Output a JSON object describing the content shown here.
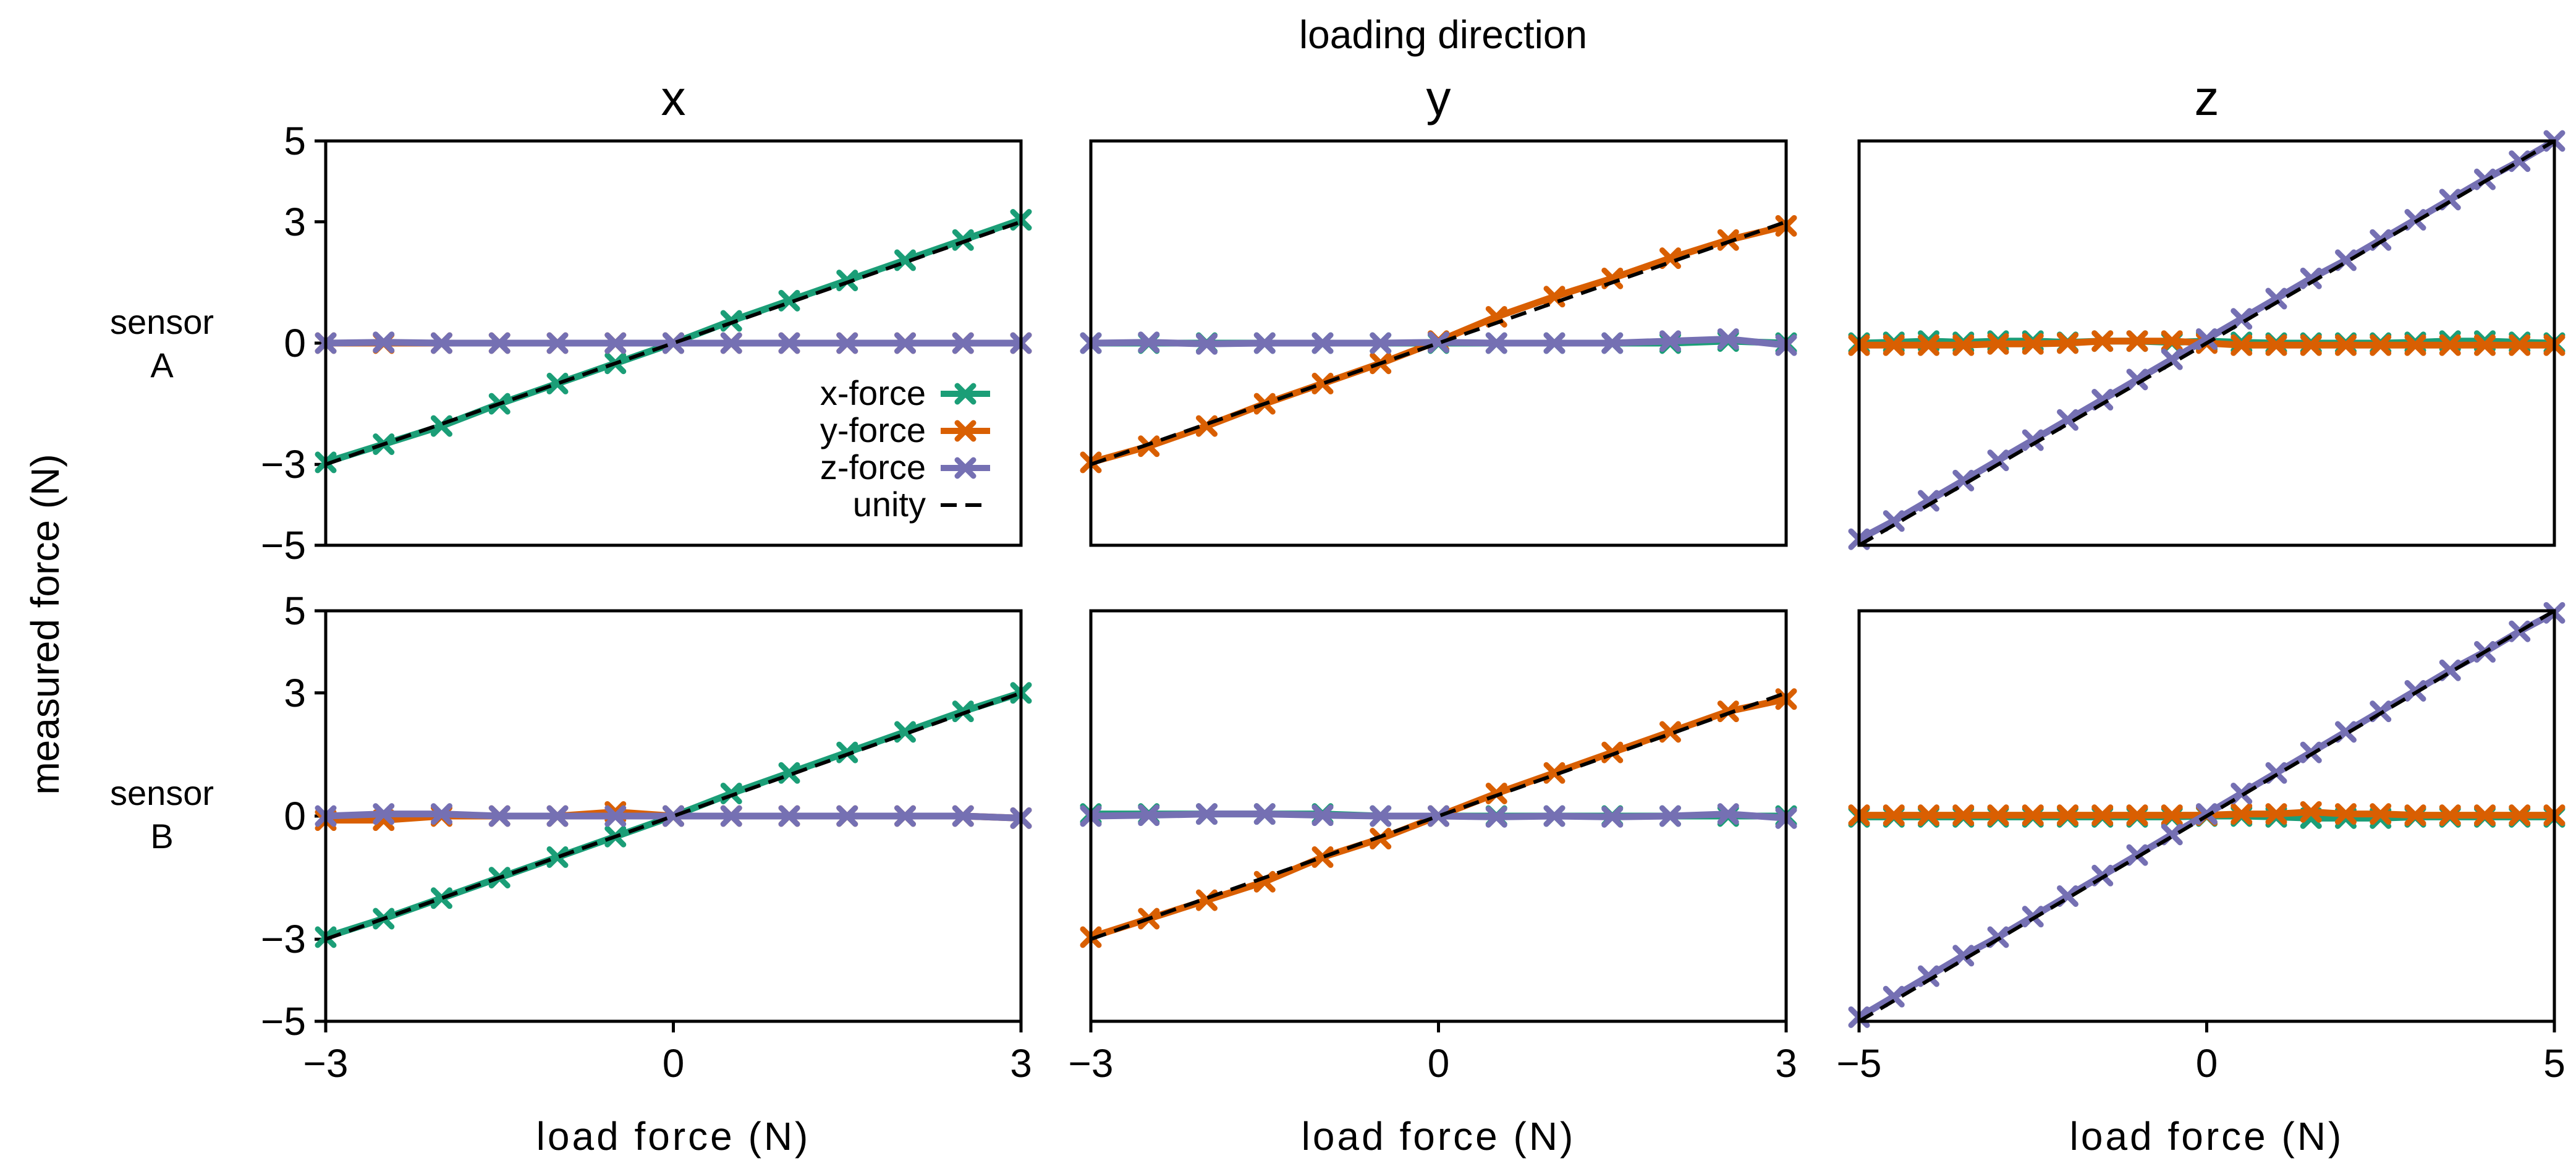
{
  "figure": {
    "super_title": "loading direction",
    "y_axis_label": "measured force (N)",
    "row_labels": [
      [
        "sensor",
        "A"
      ],
      [
        "sensor",
        "B"
      ]
    ],
    "x_axis_label": "load force (N)"
  },
  "colors": {
    "x-force": "#1b9e77",
    "y-force": "#d95f02",
    "z-force": "#7570b3",
    "unity": "#000000"
  },
  "legend": {
    "entries": [
      "x-force",
      "y-force",
      "z-force",
      "unity"
    ]
  },
  "chart_data": [
    {
      "type": "line",
      "panel": "sensor A - x",
      "title": "x",
      "xlabel": "",
      "ylabel": "",
      "xlim": [
        -3,
        3
      ],
      "ylim": [
        -5,
        5
      ],
      "xticks": [],
      "yticks": [
        -5,
        -3,
        0,
        3,
        5
      ],
      "x": [
        -3,
        -2.5,
        -2,
        -1.5,
        -1,
        -0.5,
        0,
        0.5,
        1,
        1.5,
        2,
        2.5,
        3
      ],
      "series": [
        {
          "name": "x-force",
          "values": [
            -2.95,
            -2.5,
            -2.05,
            -1.5,
            -1.0,
            -0.5,
            0,
            0.55,
            1.05,
            1.55,
            2.05,
            2.55,
            3.05
          ]
        },
        {
          "name": "y-force",
          "values": [
            0,
            0,
            0,
            0,
            0,
            0,
            0,
            0,
            0,
            0,
            0,
            0,
            0
          ]
        },
        {
          "name": "z-force",
          "values": [
            0,
            0.02,
            0,
            0,
            0,
            0,
            0,
            0,
            0,
            0,
            0,
            0,
            0
          ]
        },
        {
          "name": "unity",
          "values": [
            -3,
            -2.5,
            -2,
            -1.5,
            -1,
            -0.5,
            0,
            0.5,
            1,
            1.5,
            2,
            2.5,
            3
          ]
        }
      ],
      "legend": "lower-right"
    },
    {
      "type": "line",
      "panel": "sensor A - y",
      "title": "y",
      "xlim": [
        -3,
        3
      ],
      "ylim": [
        -5,
        5
      ],
      "xticks": [],
      "yticks": [],
      "x": [
        -3,
        -2.5,
        -2,
        -1.5,
        -1,
        -0.5,
        0,
        0.5,
        1,
        1.5,
        2,
        2.5,
        3
      ],
      "series": [
        {
          "name": "x-force",
          "values": [
            0,
            0,
            0,
            0,
            0,
            0,
            0,
            0,
            0,
            0,
            0,
            0.05,
            0.0
          ]
        },
        {
          "name": "y-force",
          "values": [
            -2.95,
            -2.55,
            -2.05,
            -1.5,
            -1.0,
            -0.5,
            0.05,
            0.65,
            1.15,
            1.6,
            2.1,
            2.55,
            2.9
          ]
        },
        {
          "name": "z-force",
          "values": [
            0,
            0.02,
            -0.02,
            0,
            0,
            0,
            0.02,
            0,
            0,
            0,
            0.05,
            0.1,
            -0.05
          ]
        },
        {
          "name": "unity",
          "values": [
            -3,
            -2.5,
            -2,
            -1.5,
            -1,
            -0.5,
            0,
            0.5,
            1,
            1.5,
            2,
            2.5,
            3
          ]
        }
      ]
    },
    {
      "type": "line",
      "panel": "sensor A - z",
      "title": "z",
      "xlim": [
        -5,
        5
      ],
      "ylim": [
        -5,
        5
      ],
      "xticks": [],
      "yticks": [],
      "x": [
        -5,
        -4.5,
        -4,
        -3.5,
        -3,
        -2.5,
        -2,
        -1.5,
        -1,
        -0.5,
        0,
        0.5,
        1,
        1.5,
        2,
        2.5,
        3,
        3.5,
        4,
        4.5,
        5
      ],
      "series": [
        {
          "name": "x-force",
          "values": [
            0,
            0.02,
            0.05,
            0.02,
            0.05,
            0.05,
            0.02,
            0.05,
            0.05,
            0.02,
            0.05,
            0.02,
            0,
            0,
            0,
            0,
            0.02,
            0.05,
            0.05,
            0.02,
            0
          ]
        },
        {
          "name": "y-force",
          "values": [
            -0.05,
            -0.05,
            -0.05,
            -0.05,
            -0.02,
            -0.02,
            0,
            0.05,
            0.05,
            0.05,
            0,
            -0.05,
            -0.05,
            -0.05,
            -0.05,
            -0.05,
            -0.05,
            -0.05,
            -0.05,
            -0.05,
            -0.05
          ]
        },
        {
          "name": "z-force",
          "values": [
            -4.85,
            -4.4,
            -3.9,
            -3.4,
            -2.9,
            -2.4,
            -1.9,
            -1.4,
            -0.9,
            -0.4,
            0.1,
            0.6,
            1.1,
            1.6,
            2.05,
            2.55,
            3.05,
            3.55,
            4.05,
            4.5,
            5
          ]
        },
        {
          "name": "unity",
          "values": [
            -5,
            -4.5,
            -4,
            -3.5,
            -3,
            -2.5,
            -2,
            -1.5,
            -1,
            -0.5,
            0,
            0.5,
            1,
            1.5,
            2,
            2.5,
            3,
            3.5,
            4,
            4.5,
            5
          ]
        }
      ]
    },
    {
      "type": "line",
      "panel": "sensor B - x",
      "title": "",
      "xlabel": "load force (N)",
      "xlim": [
        -3,
        3
      ],
      "ylim": [
        -5,
        5
      ],
      "xticks": [
        -3,
        0,
        3
      ],
      "yticks": [
        -5,
        -3,
        0,
        3,
        5
      ],
      "x": [
        -3,
        -2.5,
        -2,
        -1.5,
        -1,
        -0.5,
        0,
        0.5,
        1,
        1.5,
        2,
        2.5,
        3
      ],
      "series": [
        {
          "name": "x-force",
          "values": [
            -2.95,
            -2.5,
            -2.0,
            -1.5,
            -1.0,
            -0.5,
            0,
            0.55,
            1.05,
            1.55,
            2.05,
            2.55,
            3.0
          ]
        },
        {
          "name": "y-force",
          "values": [
            -0.1,
            -0.1,
            0,
            0,
            0,
            0.1,
            0,
            0,
            0,
            0,
            0,
            0,
            -0.05
          ]
        },
        {
          "name": "z-force",
          "values": [
            0,
            0.05,
            0.05,
            0,
            0,
            0,
            0,
            0,
            0,
            0,
            0,
            0,
            -0.05
          ]
        },
        {
          "name": "unity",
          "values": [
            -3,
            -2.5,
            -2,
            -1.5,
            -1,
            -0.5,
            0,
            0.5,
            1,
            1.5,
            2,
            2.5,
            3
          ]
        }
      ]
    },
    {
      "type": "line",
      "panel": "sensor B - y",
      "title": "",
      "xlabel": "load force (N)",
      "xlim": [
        -3,
        3
      ],
      "ylim": [
        -5,
        5
      ],
      "xticks": [
        -3,
        0,
        3
      ],
      "yticks": [],
      "x": [
        -3,
        -2.5,
        -2,
        -1.5,
        -1,
        -0.5,
        0,
        0.5,
        1,
        1.5,
        2,
        2.5,
        3
      ],
      "series": [
        {
          "name": "x-force",
          "values": [
            0.05,
            0.05,
            0.05,
            0.05,
            0.05,
            0,
            0,
            0,
            0,
            0,
            0,
            0,
            0
          ]
        },
        {
          "name": "y-force",
          "values": [
            -2.95,
            -2.5,
            -2.05,
            -1.6,
            -1.0,
            -0.55,
            0,
            0.55,
            1.05,
            1.55,
            2.05,
            2.55,
            2.85
          ]
        },
        {
          "name": "z-force",
          "values": [
            0,
            0.02,
            0.05,
            0.05,
            0.02,
            0,
            0,
            -0.02,
            0,
            -0.02,
            0,
            0.05,
            -0.05
          ]
        },
        {
          "name": "unity",
          "values": [
            -3,
            -2.5,
            -2,
            -1.5,
            -1,
            -0.5,
            0,
            0.5,
            1,
            1.5,
            2,
            2.5,
            3
          ]
        }
      ]
    },
    {
      "type": "line",
      "panel": "sensor B - z",
      "title": "",
      "xlabel": "load force (N)",
      "xlim": [
        -5,
        5
      ],
      "ylim": [
        -5,
        5
      ],
      "xticks": [
        -5,
        0,
        5
      ],
      "yticks": [],
      "x": [
        -5,
        -4.5,
        -4,
        -3.5,
        -3,
        -2.5,
        -2,
        -1.5,
        -1,
        -0.5,
        0,
        0.5,
        1,
        1.5,
        2,
        2.5,
        3,
        3.5,
        4,
        4.5,
        5
      ],
      "series": [
        {
          "name": "x-force",
          "values": [
            -0.02,
            -0.02,
            -0.02,
            -0.02,
            -0.02,
            -0.02,
            -0.02,
            -0.02,
            -0.02,
            -0.02,
            0,
            0,
            -0.02,
            -0.05,
            -0.05,
            -0.05,
            -0.02,
            -0.02,
            -0.02,
            -0.02,
            -0.02
          ]
        },
        {
          "name": "y-force",
          "values": [
            0.02,
            0.02,
            0.02,
            0.02,
            0.02,
            0.02,
            0.02,
            0.02,
            0.02,
            0.02,
            0.02,
            0.05,
            0.05,
            0.1,
            0.05,
            0.05,
            0.02,
            0.02,
            0.02,
            0.02,
            0.02
          ]
        },
        {
          "name": "z-force",
          "values": [
            -4.9,
            -4.4,
            -3.9,
            -3.4,
            -2.95,
            -2.45,
            -1.95,
            -1.45,
            -0.95,
            -0.45,
            0.05,
            0.55,
            1.05,
            1.55,
            2.05,
            2.55,
            3.05,
            3.55,
            4.0,
            4.5,
            4.95
          ]
        },
        {
          "name": "unity",
          "values": [
            -5,
            -4.5,
            -4,
            -3.5,
            -3,
            -2.5,
            -2,
            -1.5,
            -1,
            -0.5,
            0,
            0.5,
            1,
            1.5,
            2,
            2.5,
            3,
            3.5,
            4,
            4.5,
            5
          ]
        }
      ]
    }
  ]
}
